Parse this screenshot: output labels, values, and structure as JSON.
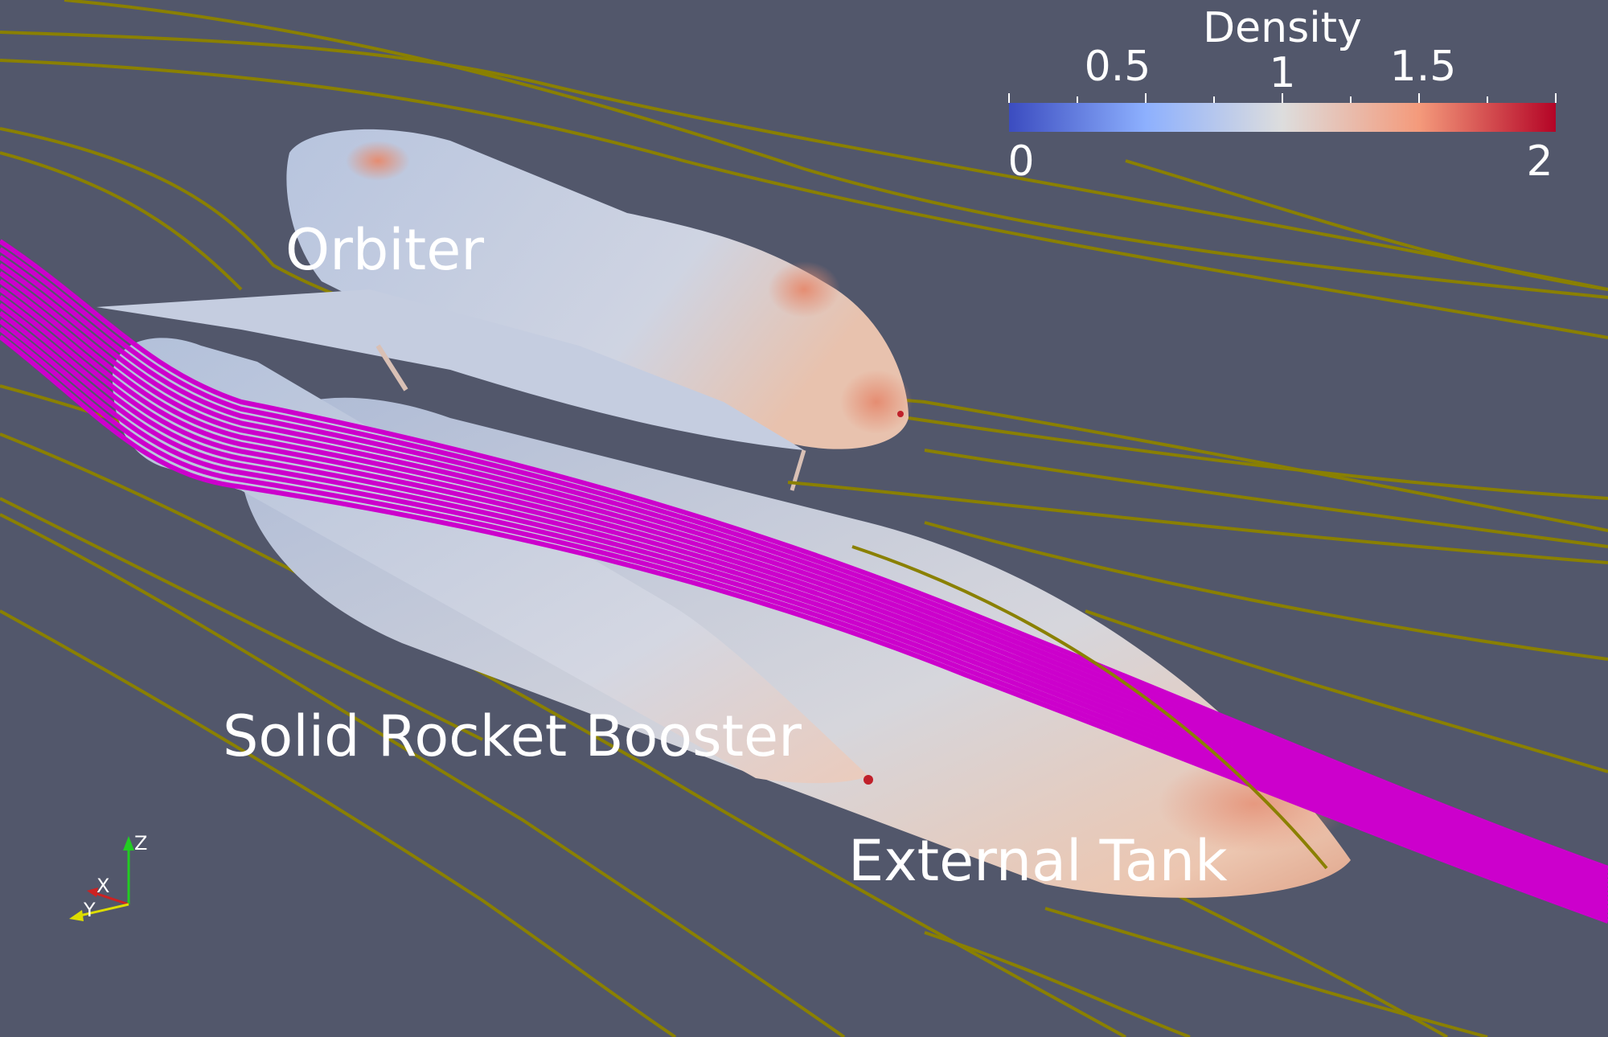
{
  "scene": {
    "background": "#52576b",
    "labels": {
      "orbiter": "Orbiter",
      "srb": "Solid Rocket Booster",
      "tank": "External Tank"
    }
  },
  "colorbar": {
    "title": "Density",
    "top_ticks": [
      "0.5",
      "1",
      "1.5"
    ],
    "bottom_ticks": [
      "0",
      "2"
    ],
    "range": [
      0,
      2
    ],
    "colors": [
      "#3b4cc0",
      "#dddddd",
      "#b40426"
    ]
  },
  "axes": {
    "x_label": "X",
    "y_label": "Y",
    "z_label": "Z"
  },
  "streamlines": {
    "olive_color": "#8a8000",
    "magenta_color": "#cc00cc"
  }
}
